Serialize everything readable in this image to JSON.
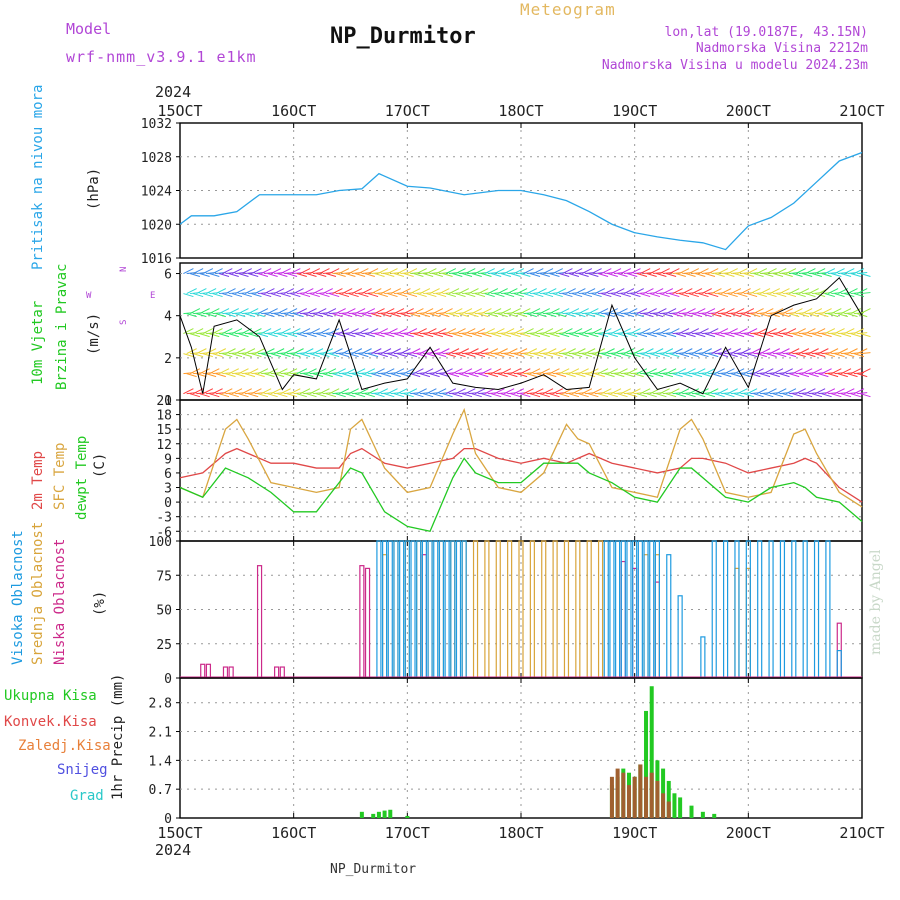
{
  "header": {
    "model_label": "Model",
    "model_name": "wrf-nmm_v3.9.1 e1km",
    "title": "NP_Durmitor",
    "meteogram_label": "Meteogram",
    "lonlat": "lon,lat (19.0187E, 43.15N)",
    "altitude": "Nadmorska Visina 2212m",
    "altitude_model": "Nadmorska Visina u modelu 2024.23m"
  },
  "footer": {
    "station": "NP_Durmitor",
    "credit": "made by Angel"
  },
  "colors": {
    "pressure": "#2aa6e8",
    "wind_black": "#000000",
    "wind_red": "#ff2a2a",
    "temp_2m": "#e04848",
    "temp_sfc": "#d9a640",
    "dewpoint": "#22c922",
    "cloud_high": "#1e9be0",
    "cloud_mid": "#d8a43a",
    "cloud_low": "#cc2a8a",
    "precip_total": "#22c922",
    "precip_conv": "#e04848",
    "precip_frozen": "#e8803a",
    "snow": "#5050e0",
    "graupel": "#2ac8c8",
    "purple": "#b146d6"
  },
  "chart_data": [
    {
      "panel": "pressure",
      "type": "line",
      "title": "",
      "ylabels": [
        "Pritisak na nivou mora",
        "(hPa)"
      ],
      "year": "2024",
      "xticks": [
        "15OCT",
        "16OCT",
        "17OCT",
        "18OCT",
        "19OCT",
        "20OCT",
        "21OCT"
      ],
      "ylim": [
        1016,
        1032
      ],
      "yticks": [
        1016,
        1020,
        1024,
        1028,
        1032
      ],
      "grid": true,
      "series": [
        {
          "name": "",
          "x": [
            0,
            0.1,
            0.3,
            0.5,
            0.7,
            0.9,
            1.0,
            1.2,
            1.4,
            1.6,
            1.75,
            2.0,
            2.2,
            2.5,
            2.8,
            3.0,
            3.2,
            3.4,
            3.6,
            3.8,
            4.0,
            4.2,
            4.4,
            4.6,
            4.8,
            5.0,
            5.2,
            5.4,
            5.6,
            5.8,
            6.0
          ],
          "y": [
            1020,
            1021,
            1021,
            1021.5,
            1023.5,
            1023.5,
            1023.5,
            1023.5,
            1024,
            1024.2,
            1026,
            1024.5,
            1024.3,
            1023.5,
            1024,
            1024,
            1023.5,
            1022.8,
            1021.5,
            1020,
            1019,
            1018.5,
            1018.1,
            1017.8,
            1017,
            1019.8,
            1020.8,
            1022.5,
            1025,
            1027.5,
            1028.5
          ]
        }
      ]
    },
    {
      "panel": "wind",
      "type": "line",
      "title": "",
      "ylabels": [
        "10m Vjetar",
        "Brzina i Pravac",
        "(m/s)"
      ],
      "compass": {
        "n": "N",
        "e": "E",
        "s": "S",
        "w": "W"
      },
      "ylim": [
        0,
        6.5
      ],
      "yticks": [
        0,
        2,
        4,
        6
      ],
      "grid": true,
      "series": [
        {
          "name": "",
          "x": [
            0,
            0.1,
            0.2,
            0.3,
            0.5,
            0.7,
            0.9,
            1.0,
            1.2,
            1.4,
            1.6,
            1.8,
            2.0,
            2.2,
            2.4,
            2.6,
            2.8,
            3.0,
            3.2,
            3.4,
            3.6,
            3.8,
            4.0,
            4.2,
            4.4,
            4.6,
            4.8,
            5.0,
            5.2,
            5.4,
            5.6,
            5.8,
            6.0
          ],
          "y": [
            4.0,
            2.5,
            0.3,
            3.5,
            3.8,
            3.0,
            0.5,
            1.2,
            1.0,
            3.8,
            0.5,
            0.8,
            1.0,
            2.5,
            0.8,
            0.6,
            0.5,
            0.8,
            1.2,
            0.5,
            0.6,
            4.5,
            2.0,
            0.5,
            0.8,
            0.3,
            2.5,
            0.6,
            4.0,
            4.5,
            4.8,
            5.8,
            4.0
          ]
        }
      ]
    },
    {
      "panel": "temperature",
      "type": "line",
      "title": "",
      "ylabels": [
        "2m Temp",
        "SFC Temp",
        "dewpt Temp",
        "(C)"
      ],
      "ylim": [
        -8,
        21
      ],
      "yticks": [
        -6,
        -3,
        0,
        3,
        6,
        9,
        12,
        15,
        18,
        21
      ],
      "grid": true,
      "series": [
        {
          "name": "2m Temp",
          "x": [
            0,
            0.2,
            0.4,
            0.5,
            0.6,
            0.8,
            1.0,
            1.2,
            1.4,
            1.5,
            1.6,
            1.8,
            2.0,
            2.2,
            2.4,
            2.5,
            2.6,
            2.8,
            3.0,
            3.2,
            3.4,
            3.5,
            3.6,
            3.8,
            4.0,
            4.2,
            4.4,
            4.5,
            4.6,
            4.8,
            5.0,
            5.2,
            5.4,
            5.5,
            5.6,
            5.8,
            6.0
          ],
          "y": [
            5,
            6,
            10,
            11,
            10,
            8,
            8,
            7,
            7,
            10,
            11,
            8,
            7,
            8,
            9,
            11,
            11,
            9,
            8,
            9,
            8,
            9,
            10,
            8,
            7,
            6,
            7,
            9,
            9,
            8,
            6,
            7,
            8,
            9,
            8,
            3,
            0
          ]
        },
        {
          "name": "SFC Temp",
          "x": [
            0,
            0.2,
            0.4,
            0.5,
            0.6,
            0.8,
            1.0,
            1.2,
            1.4,
            1.5,
            1.6,
            1.8,
            2.0,
            2.2,
            2.4,
            2.5,
            2.6,
            2.8,
            3.0,
            3.2,
            3.4,
            3.5,
            3.6,
            3.8,
            4.0,
            4.2,
            4.4,
            4.5,
            4.6,
            4.8,
            5.0,
            5.2,
            5.4,
            5.5,
            5.6,
            5.8,
            6.0
          ],
          "y": [
            3,
            1,
            15,
            17,
            13,
            4,
            3,
            2,
            3,
            15,
            17,
            7,
            2,
            3,
            14,
            19,
            10,
            3,
            2,
            6,
            16,
            13,
            12,
            3,
            2,
            1,
            15,
            17,
            13,
            2,
            1,
            2,
            14,
            15,
            10,
            2,
            -1
          ]
        },
        {
          "name": "dewpt Temp",
          "x": [
            0,
            0.2,
            0.4,
            0.5,
            0.6,
            0.8,
            1.0,
            1.2,
            1.4,
            1.5,
            1.6,
            1.8,
            2.0,
            2.2,
            2.4,
            2.5,
            2.6,
            2.8,
            3.0,
            3.2,
            3.4,
            3.5,
            3.6,
            3.8,
            4.0,
            4.2,
            4.4,
            4.5,
            4.6,
            4.8,
            5.0,
            5.2,
            5.4,
            5.5,
            5.6,
            5.8,
            6.0
          ],
          "y": [
            3,
            1,
            7,
            6,
            5,
            2,
            -2,
            -2,
            4,
            7,
            6,
            -2,
            -5,
            -6,
            5,
            9,
            6,
            4,
            4,
            8,
            8,
            8,
            6,
            4,
            1,
            0,
            7,
            7,
            5,
            1,
            0,
            3,
            4,
            3,
            1,
            0,
            -4
          ]
        }
      ]
    },
    {
      "panel": "cloud",
      "type": "bar",
      "title": "",
      "ylabels": [
        "Visoka Oblacnost",
        "Srednja Oblacnost",
        "Niska Oblacnost",
        "(%)"
      ],
      "ylim": [
        0,
        100
      ],
      "yticks": [
        0,
        25,
        50,
        75,
        100
      ],
      "grid": true,
      "series": [
        {
          "name": "Niska Oblacnost",
          "x": [
            0.2,
            0.25,
            0.4,
            0.45,
            0.7,
            0.85,
            0.9,
            1.6,
            1.65,
            2.15,
            3.9,
            4.0,
            4.2,
            5.8
          ],
          "values": [
            10,
            10,
            8,
            8,
            82,
            8,
            8,
            82,
            80,
            90,
            85,
            80,
            70,
            40
          ]
        },
        {
          "name": "Srednja Oblacnost",
          "x": [
            1.8,
            1.9,
            2.0,
            2.1,
            2.2,
            2.3,
            2.4,
            2.5,
            2.6,
            2.7,
            2.8,
            2.9,
            3.0,
            3.1,
            3.2,
            3.3,
            3.4,
            3.5,
            3.6,
            3.7,
            4.1,
            4.2,
            4.9,
            5.0
          ],
          "values": [
            90,
            100,
            100,
            100,
            100,
            100,
            100,
            100,
            100,
            100,
            100,
            100,
            100,
            100,
            100,
            100,
            100,
            100,
            100,
            100,
            90,
            90,
            80,
            80
          ]
        },
        {
          "name": "Visoka Oblacnost",
          "x": [
            1.75,
            1.8,
            1.85,
            1.9,
            1.95,
            2.0,
            2.05,
            2.1,
            2.15,
            2.2,
            2.25,
            2.3,
            2.35,
            2.4,
            2.45,
            2.5,
            3.75,
            3.8,
            3.85,
            3.9,
            3.95,
            4.0,
            4.05,
            4.1,
            4.15,
            4.2,
            4.3,
            4.4,
            4.6,
            4.7,
            4.8,
            4.9,
            5.0,
            5.1,
            5.2,
            5.3,
            5.4,
            5.5,
            5.6,
            5.7,
            5.8
          ],
          "values": [
            100,
            100,
            100,
            100,
            100,
            100,
            100,
            100,
            100,
            100,
            100,
            100,
            100,
            100,
            100,
            100,
            100,
            100,
            100,
            100,
            100,
            100,
            100,
            100,
            100,
            100,
            90,
            60,
            30,
            100,
            100,
            100,
            100,
            100,
            100,
            100,
            100,
            100,
            100,
            100,
            20
          ]
        }
      ]
    },
    {
      "panel": "precip",
      "type": "bar",
      "title": "",
      "ylabels": [
        "1hr Precip (mm)"
      ],
      "legend": [
        "Ukupna Kisa",
        "Konvek.Kisa",
        "Zaledj.Kisa",
        "Snijeg",
        "Grad"
      ],
      "ylim": [
        0,
        3.4
      ],
      "yticks": [
        0,
        0.7,
        1.4,
        2.1,
        2.8
      ],
      "grid": true,
      "series": [
        {
          "name": "Ukupna Kisa",
          "x": [
            1.6,
            1.7,
            1.75,
            1.8,
            1.85,
            2.0,
            3.8,
            3.85,
            3.9,
            3.95,
            4.0,
            4.05,
            4.1,
            4.15,
            4.2,
            4.25,
            4.3,
            4.35,
            4.4,
            4.5,
            4.6,
            4.7
          ],
          "values": [
            0.15,
            0.1,
            0.15,
            0.18,
            0.2,
            0.05,
            0.8,
            1.0,
            1.2,
            1.1,
            1.0,
            1.3,
            2.6,
            3.2,
            1.4,
            1.2,
            0.9,
            0.6,
            0.5,
            0.3,
            0.15,
            0.1
          ]
        },
        {
          "name": "Konvek.Kisa",
          "x": [
            3.8,
            3.85,
            3.9,
            3.95,
            4.0,
            4.05,
            4.1,
            4.15,
            4.2,
            4.25,
            4.3
          ],
          "values": [
            1.0,
            1.2,
            1.1,
            0.8,
            1.0,
            1.3,
            1.0,
            1.1,
            0.9,
            0.6,
            0.4
          ]
        }
      ]
    }
  ]
}
